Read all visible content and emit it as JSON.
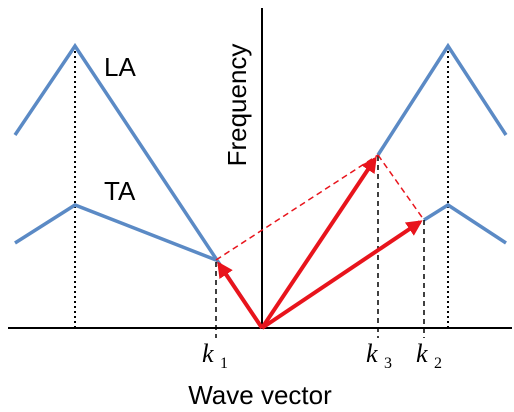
{
  "labels": {
    "la": "LA",
    "ta": "TA",
    "y_axis": "Frequency",
    "x_axis": "Wave vector"
  },
  "wave_vectors": [
    {
      "symbol": "k",
      "subscript": "1"
    },
    {
      "symbol": "k",
      "subscript": "3"
    },
    {
      "symbol": "k",
      "subscript": "2"
    }
  ],
  "colors": {
    "branch": "#5b8ac5",
    "phonon_arrow": "#e8141c",
    "axis": "#000000"
  }
}
